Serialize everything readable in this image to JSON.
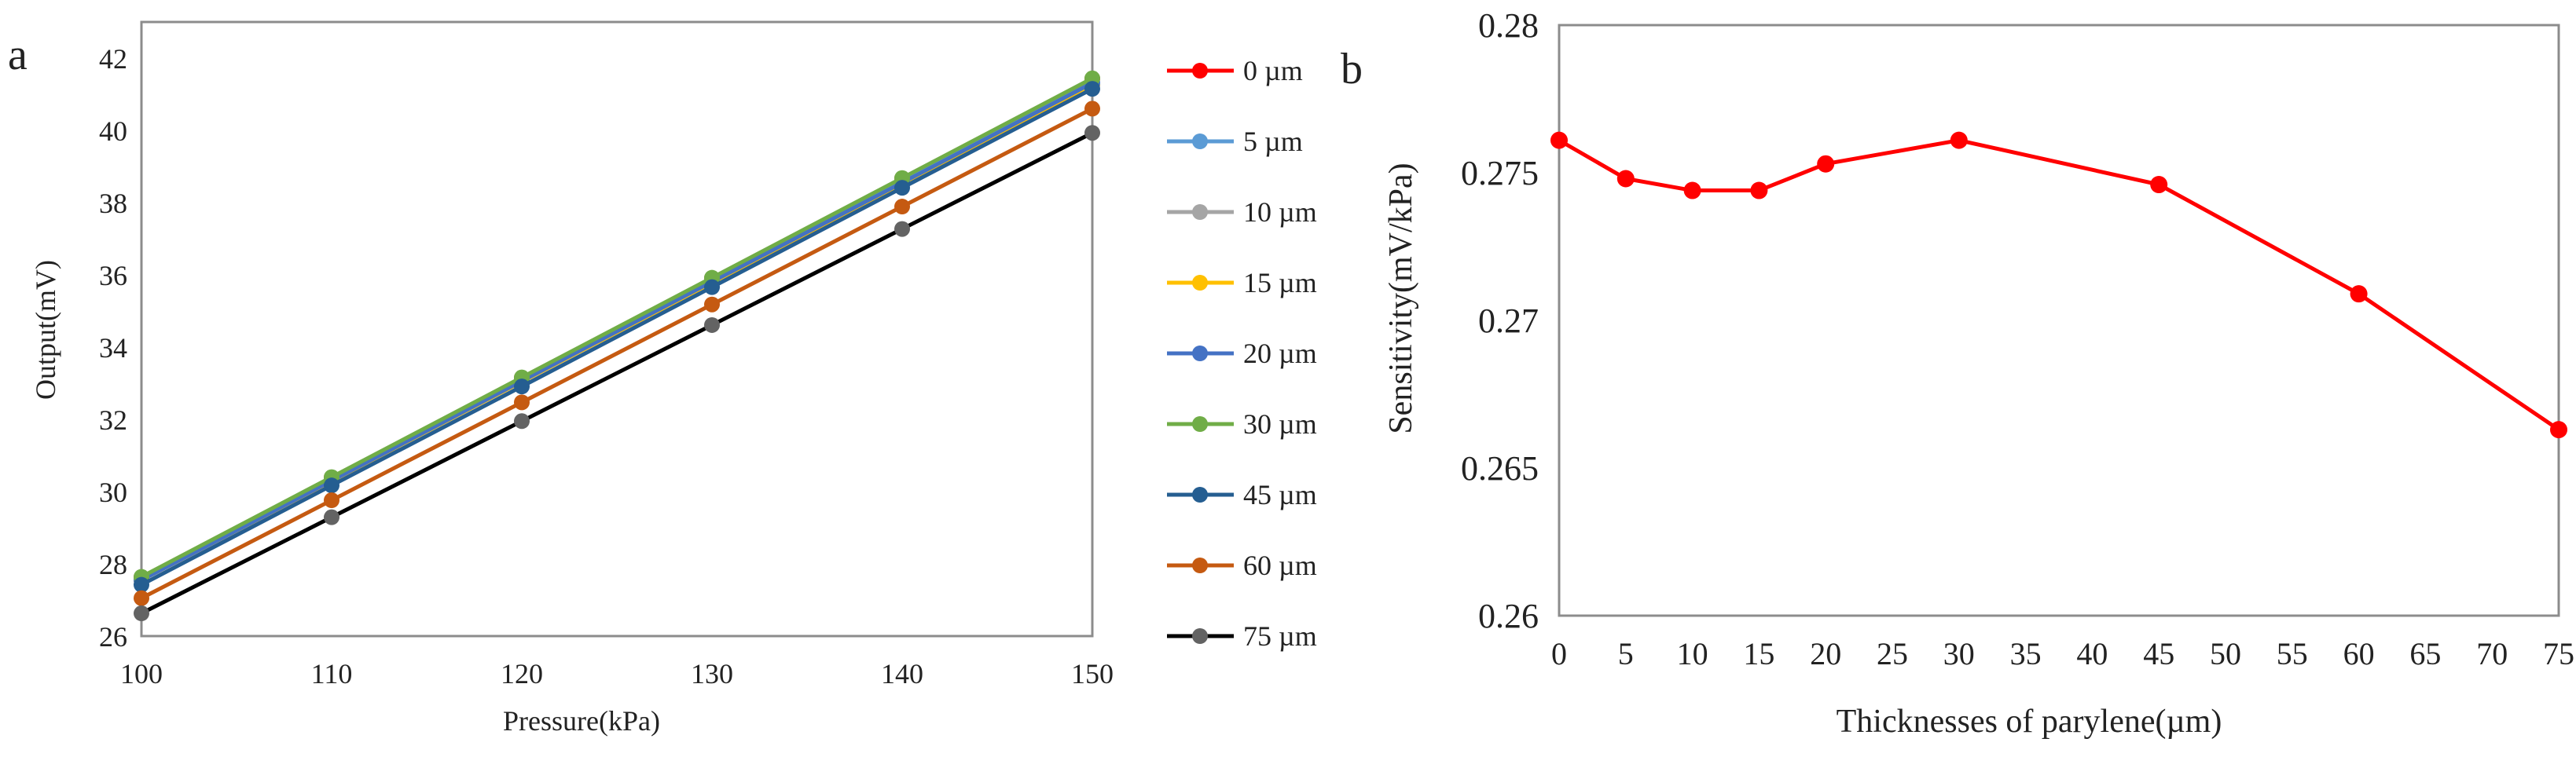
{
  "chart_data": [
    {
      "panel_label": "a",
      "type": "line",
      "title": "",
      "xlabel": "Pressure(kPa)",
      "ylabel": "Output(mV)",
      "xlim": [
        100,
        150
      ],
      "ylim": [
        26,
        43
      ],
      "x_ticks": [
        100,
        110,
        120,
        130,
        140,
        150
      ],
      "y_ticks": [
        26,
        28,
        30,
        32,
        34,
        36,
        38,
        40,
        42
      ],
      "grid": false,
      "legend_position": "right-outside",
      "x": [
        100,
        110,
        120,
        130,
        140,
        150
      ],
      "series": [
        {
          "name": "0 µm",
          "color": "#ff0000",
          "values": [
            27.63,
            30.39,
            33.15,
            35.91,
            38.67,
            41.43
          ]
        },
        {
          "name": "5 µm",
          "color": "#5b9bd5",
          "values": [
            27.57,
            30.32,
            33.07,
            35.82,
            38.57,
            41.32
          ]
        },
        {
          "name": "10 µm",
          "color": "#a5a5a5",
          "values": [
            27.55,
            30.29,
            33.04,
            35.78,
            38.52,
            41.27
          ]
        },
        {
          "name": "15 µm",
          "color": "#ffc000",
          "values": [
            27.55,
            30.29,
            33.04,
            35.78,
            38.52,
            41.27
          ]
        },
        {
          "name": "20 µm",
          "color": "#4472c4",
          "values": [
            27.55,
            30.3,
            33.06,
            35.81,
            38.55,
            41.31
          ]
        },
        {
          "name": "30 µm",
          "color": "#70ad47",
          "values": [
            27.64,
            30.4,
            33.16,
            35.92,
            38.68,
            41.44
          ]
        },
        {
          "name": "45 µm",
          "color": "#255e91",
          "values": [
            27.42,
            30.17,
            32.91,
            35.66,
            38.41,
            41.15
          ]
        },
        {
          "name": "60 µm",
          "color": "#c55a11",
          "values": [
            27.05,
            29.76,
            32.47,
            35.18,
            37.89,
            40.6
          ]
        },
        {
          "name": "75 µm",
          "color": "#636363",
          "values": [
            26.63,
            29.29,
            31.95,
            34.61,
            37.27,
            39.93
          ]
        }
      ],
      "line_colors": {
        "75 µm": "#000000"
      }
    },
    {
      "panel_label": "b",
      "type": "line",
      "title": "",
      "xlabel": "Thicknesses of parylene(µm)",
      "ylabel": "Sensitivity(mV/kPa)",
      "xlim": [
        0,
        75
      ],
      "ylim": [
        0.26,
        0.28
      ],
      "x_ticks": [
        0,
        5,
        10,
        15,
        20,
        25,
        30,
        35,
        40,
        45,
        50,
        55,
        60,
        65,
        70,
        75
      ],
      "y_ticks": [
        "0.26",
        "0.265",
        "0.27",
        "0.275",
        "0.28"
      ],
      "grid": false,
      "series": [
        {
          "name": "Sensitivity",
          "color": "#ff0000",
          "x": [
            0,
            5,
            10,
            15,
            20,
            30,
            45,
            60,
            75
          ],
          "values": [
            0.2761,
            0.2748,
            0.2744,
            0.2744,
            0.2753,
            0.2761,
            0.2746,
            0.2709,
            0.2663
          ]
        }
      ]
    }
  ]
}
